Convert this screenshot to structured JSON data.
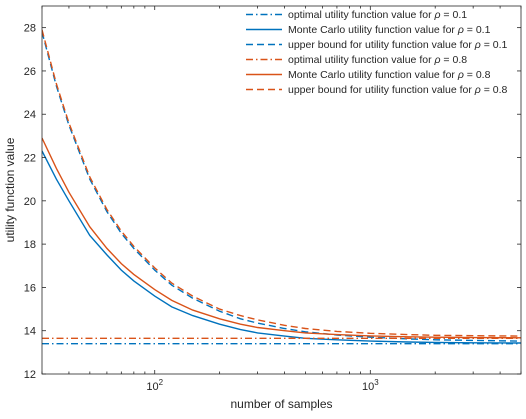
{
  "chart_data": {
    "type": "line",
    "xlabel": "number of samples",
    "ylabel": "utility function value",
    "xscale": "log",
    "xlim": [
      30,
      5000
    ],
    "ylim": [
      12,
      29
    ],
    "grid": false,
    "legend_location": "top-right",
    "x_ticks": [
      {
        "value": 100,
        "base": "10",
        "exp": "2"
      },
      {
        "value": 1000,
        "base": "10",
        "exp": "3"
      }
    ],
    "y_ticks": [
      12,
      14,
      16,
      18,
      20,
      22,
      24,
      26,
      28
    ],
    "series": [
      {
        "name_prefix": "optimal utility function value for ",
        "rho": "0.1",
        "color": "#0072BD",
        "dash": "dashdot",
        "x": [
          30,
          5000
        ],
        "y": [
          13.4,
          13.4
        ]
      },
      {
        "name_prefix": "Monte Carlo utility function value for ",
        "rho": "0.1",
        "color": "#0072BD",
        "dash": "solid",
        "x": [
          30,
          35,
          40,
          50,
          60,
          70,
          80,
          100,
          120,
          150,
          200,
          250,
          300,
          400,
          500,
          700,
          1000,
          1500,
          2000,
          3000,
          5000
        ],
        "y": [
          22.3,
          21.0,
          20.0,
          18.4,
          17.5,
          16.8,
          16.3,
          15.6,
          15.1,
          14.7,
          14.3,
          14.05,
          13.9,
          13.75,
          13.65,
          13.58,
          13.52,
          13.48,
          13.46,
          13.44,
          13.43
        ]
      },
      {
        "name_prefix": "upper bound for utility function value for ",
        "rho": "0.1",
        "color": "#0072BD",
        "dash": "dashed",
        "x": [
          30,
          35,
          40,
          50,
          60,
          70,
          80,
          100,
          120,
          150,
          200,
          250,
          300,
          400,
          500,
          700,
          1000,
          1500,
          2000,
          3000,
          5000
        ],
        "y": [
          27.8,
          25.3,
          23.5,
          21.0,
          19.5,
          18.5,
          17.8,
          16.8,
          16.1,
          15.5,
          14.9,
          14.55,
          14.35,
          14.1,
          13.95,
          13.8,
          13.7,
          13.62,
          13.58,
          13.55,
          13.52
        ]
      },
      {
        "name_prefix": "optimal utility function value for ",
        "rho": "0.8",
        "color": "#D95319",
        "dash": "dashdot",
        "x": [
          30,
          5000
        ],
        "y": [
          13.65,
          13.65
        ]
      },
      {
        "name_prefix": "Monte Carlo utility function value for ",
        "rho": "0.8",
        "color": "#D95319",
        "dash": "solid",
        "x": [
          30,
          35,
          40,
          50,
          60,
          70,
          80,
          100,
          120,
          150,
          200,
          250,
          300,
          400,
          500,
          700,
          1000,
          1500,
          2000,
          3000,
          5000
        ],
        "y": [
          22.9,
          21.5,
          20.4,
          18.8,
          17.8,
          17.1,
          16.6,
          15.9,
          15.4,
          14.95,
          14.55,
          14.3,
          14.15,
          14.0,
          13.9,
          13.82,
          13.76,
          13.72,
          13.7,
          13.68,
          13.67
        ]
      },
      {
        "name_prefix": "upper bound for utility function value for ",
        "rho": "0.8",
        "color": "#D95319",
        "dash": "dashed",
        "x": [
          30,
          35,
          40,
          50,
          60,
          70,
          80,
          100,
          120,
          150,
          200,
          250,
          300,
          400,
          500,
          700,
          1000,
          1500,
          2000,
          3000,
          5000
        ],
        "y": [
          27.9,
          25.4,
          23.6,
          21.1,
          19.6,
          18.6,
          17.9,
          16.9,
          16.2,
          15.6,
          15.0,
          14.7,
          14.5,
          14.25,
          14.1,
          13.97,
          13.88,
          13.82,
          13.79,
          13.77,
          13.75
        ]
      }
    ]
  }
}
